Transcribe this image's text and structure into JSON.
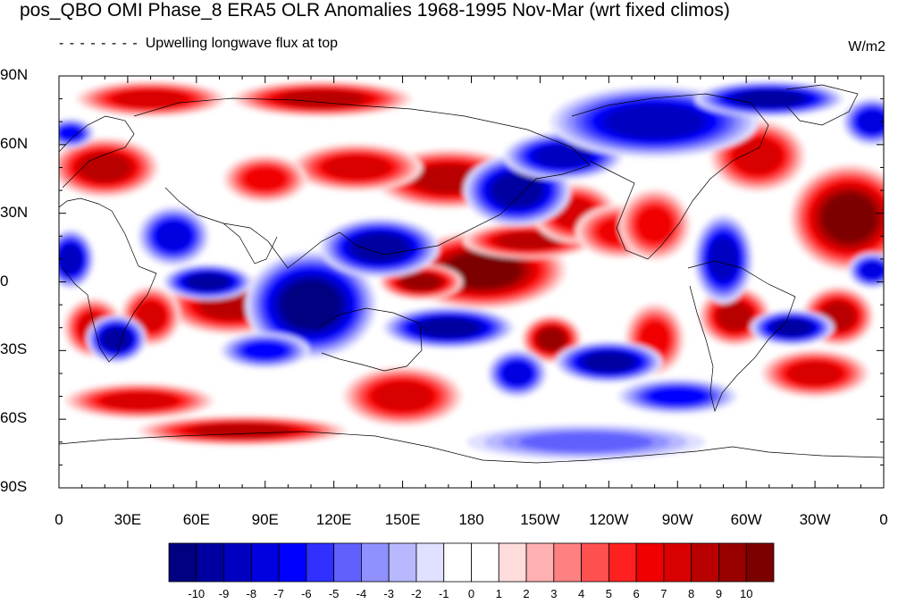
{
  "title": "pos_QBO OMI Phase_8 ERA5 OLR Anomalies 1968-1995 Nov-Mar (wrt fixed climos)",
  "subtitle": "Upwelling longwave flux at top",
  "units": "W/m2",
  "lat_labels": [
    "90N",
    "60N",
    "30N",
    "0",
    "30S",
    "60S",
    "90S"
  ],
  "lon_labels": [
    "0",
    "30E",
    "60E",
    "90E",
    "120E",
    "150E",
    "180",
    "150W",
    "120W",
    "90W",
    "60W",
    "30W",
    "0"
  ],
  "colorbar": {
    "levels": [
      "-10",
      "-9",
      "-8",
      "-7",
      "-6",
      "-5",
      "-4",
      "-3",
      "-2",
      "-1",
      "0",
      "1",
      "2",
      "3",
      "4",
      "5",
      "6",
      "7",
      "8",
      "9",
      "10"
    ],
    "colors": [
      "#000080",
      "#0000a0",
      "#0000c0",
      "#0000e0",
      "#0000ff",
      "#3030ff",
      "#6060ff",
      "#9090ff",
      "#b8b8ff",
      "#e0e0ff",
      "#ffffff",
      "#ffffff",
      "#ffdcdc",
      "#ffb0b0",
      "#ff8080",
      "#ff5050",
      "#ff2020",
      "#f00000",
      "#d80000",
      "#b80000",
      "#980000",
      "#7c0000"
    ]
  },
  "map": {
    "lon_range": [
      0,
      360
    ],
    "lat_range": [
      -90,
      90
    ],
    "anomaly_features": [
      {
        "lon": 185,
        "lat": 5,
        "value": 10,
        "rx": 28,
        "ry": 13
      },
      {
        "lon": 158,
        "lat": 0,
        "value": 9,
        "rx": 14,
        "ry": 6
      },
      {
        "lon": 205,
        "lat": 18,
        "value": 8,
        "rx": 22,
        "ry": 6
      },
      {
        "lon": 225,
        "lat": 30,
        "value": 7,
        "rx": 14,
        "ry": 10
      },
      {
        "lon": 245,
        "lat": 22,
        "value": 6,
        "rx": 15,
        "ry": 9
      },
      {
        "lon": 260,
        "lat": 25,
        "value": 6,
        "rx": 12,
        "ry": 12
      },
      {
        "lon": 345,
        "lat": 28,
        "value": 10,
        "rx": 20,
        "ry": 18
      },
      {
        "lon": 305,
        "lat": 55,
        "value": 7,
        "rx": 16,
        "ry": 12
      },
      {
        "lon": 20,
        "lat": 50,
        "value": 8,
        "rx": 18,
        "ry": 10
      },
      {
        "lon": 115,
        "lat": 80,
        "value": 8,
        "rx": 30,
        "ry": 6
      },
      {
        "lon": 40,
        "lat": 80,
        "value": 7,
        "rx": 25,
        "ry": 6
      },
      {
        "lon": 170,
        "lat": 45,
        "value": 8,
        "rx": 25,
        "ry": 10
      },
      {
        "lon": 130,
        "lat": 50,
        "value": 7,
        "rx": 22,
        "ry": 8
      },
      {
        "lon": 90,
        "lat": 45,
        "value": 6,
        "rx": 14,
        "ry": 8
      },
      {
        "lon": 75,
        "lat": -10,
        "value": 8,
        "rx": 22,
        "ry": 10
      },
      {
        "lon": 40,
        "lat": -15,
        "value": 7,
        "rx": 10,
        "ry": 10
      },
      {
        "lon": 15,
        "lat": -20,
        "value": 7,
        "rx": 10,
        "ry": 10
      },
      {
        "lon": 150,
        "lat": -50,
        "value": 7,
        "rx": 20,
        "ry": 10
      },
      {
        "lon": 215,
        "lat": -25,
        "value": 9,
        "rx": 10,
        "ry": 8
      },
      {
        "lon": 295,
        "lat": -15,
        "value": 8,
        "rx": 12,
        "ry": 10
      },
      {
        "lon": 340,
        "lat": -15,
        "value": 8,
        "rx": 12,
        "ry": 10
      },
      {
        "lon": 330,
        "lat": -40,
        "value": 7,
        "rx": 18,
        "ry": 8
      },
      {
        "lon": 80,
        "lat": -65,
        "value": 8,
        "rx": 35,
        "ry": 5
      },
      {
        "lon": 35,
        "lat": -52,
        "value": 7,
        "rx": 25,
        "ry": 6
      },
      {
        "lon": 260,
        "lat": -25,
        "value": 6,
        "rx": 10,
        "ry": 12
      },
      {
        "lon": 110,
        "lat": -10,
        "value": -10,
        "rx": 22,
        "ry": 18
      },
      {
        "lon": 65,
        "lat": 0,
        "value": -9,
        "rx": 15,
        "ry": 6
      },
      {
        "lon": 140,
        "lat": 15,
        "value": -9,
        "rx": 20,
        "ry": 10
      },
      {
        "lon": 170,
        "lat": -20,
        "value": -9,
        "rx": 22,
        "ry": 7
      },
      {
        "lon": 200,
        "lat": 40,
        "value": -9,
        "rx": 18,
        "ry": 12
      },
      {
        "lon": 220,
        "lat": 55,
        "value": -8,
        "rx": 20,
        "ry": 8
      },
      {
        "lon": 260,
        "lat": 70,
        "value": -8,
        "rx": 35,
        "ry": 12
      },
      {
        "lon": 310,
        "lat": 80,
        "value": -9,
        "rx": 25,
        "ry": 6
      },
      {
        "lon": 25,
        "lat": -25,
        "value": -9,
        "rx": 10,
        "ry": 8
      },
      {
        "lon": 5,
        "lat": 10,
        "value": -8,
        "rx": 8,
        "ry": 10
      },
      {
        "lon": 50,
        "lat": 20,
        "value": -7,
        "rx": 12,
        "ry": 10
      },
      {
        "lon": 290,
        "lat": 10,
        "value": -8,
        "rx": 10,
        "ry": 15
      },
      {
        "lon": 320,
        "lat": -20,
        "value": -9,
        "rx": 14,
        "ry": 6
      },
      {
        "lon": 240,
        "lat": -35,
        "value": -9,
        "rx": 18,
        "ry": 7
      },
      {
        "lon": 200,
        "lat": -40,
        "value": -7,
        "rx": 10,
        "ry": 8
      },
      {
        "lon": 355,
        "lat": 5,
        "value": -7,
        "rx": 8,
        "ry": 6
      },
      {
        "lon": 90,
        "lat": -30,
        "value": -6,
        "rx": 15,
        "ry": 6
      },
      {
        "lon": 355,
        "lat": 70,
        "value": -7,
        "rx": 10,
        "ry": 8
      },
      {
        "lon": 5,
        "lat": 65,
        "value": -6,
        "rx": 8,
        "ry": 5
      },
      {
        "lon": 270,
        "lat": -50,
        "value": -6,
        "rx": 20,
        "ry": 6
      },
      {
        "lon": 230,
        "lat": -70,
        "value": -4,
        "rx": 40,
        "ry": 6
      }
    ]
  }
}
